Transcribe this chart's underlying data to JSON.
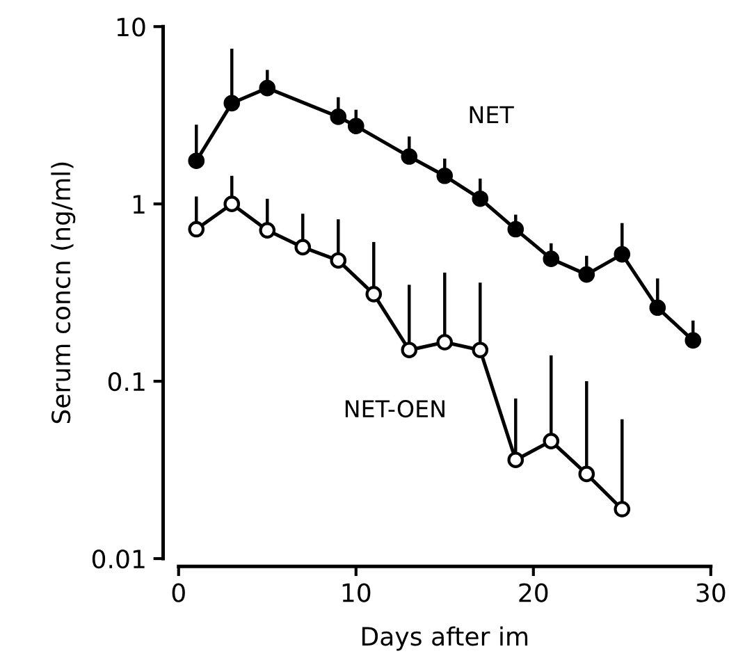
{
  "chart_data": {
    "type": "line",
    "xlabel": "Days after im",
    "ylabel": "Serum concn (ng/ml)",
    "series": [
      {
        "name": "NET",
        "color": "#000000",
        "x": [
          1,
          3,
          5,
          9,
          10,
          13,
          15,
          17,
          19,
          21,
          23,
          25,
          27,
          29
        ],
        "values": [
          1.75,
          3.7,
          4.5,
          3.1,
          2.75,
          1.85,
          1.44,
          1.07,
          0.72,
          0.49,
          0.4,
          0.52,
          0.26,
          0.17
        ],
        "errors": [
          [
            1.75,
            2.8
          ],
          [
            3.7,
            7.5
          ],
          [
            4.5,
            5.7
          ],
          [
            3.1,
            4.0
          ],
          [
            2.75,
            3.4
          ],
          [
            1.85,
            2.4
          ],
          [
            1.44,
            1.8
          ],
          [
            1.07,
            1.39
          ],
          [
            0.72,
            0.87
          ],
          [
            0.49,
            0.6
          ],
          [
            0.4,
            0.51
          ],
          [
            0.52,
            0.78
          ],
          [
            0.26,
            0.38
          ],
          [
            0.17,
            0.22
          ]
        ]
      },
      {
        "name": "NET-OEN",
        "color": "#000000",
        "x": [
          1,
          3,
          5,
          7,
          9,
          11,
          13,
          15,
          17,
          19,
          21,
          23,
          25
        ],
        "values": [
          0.72,
          1.0,
          0.71,
          0.57,
          0.48,
          0.31,
          0.15,
          0.166,
          0.15,
          0.036,
          0.046,
          0.03,
          0.019
        ],
        "errors": [
          [
            0.72,
            1.1
          ],
          [
            1.0,
            1.44
          ],
          [
            0.71,
            1.07
          ],
          [
            0.57,
            0.88
          ],
          [
            0.48,
            0.82
          ],
          [
            0.31,
            0.61
          ],
          [
            0.15,
            0.35
          ],
          [
            0.166,
            0.41
          ],
          [
            0.15,
            0.36
          ],
          [
            0.036,
            0.08
          ],
          [
            0.046,
            0.14
          ],
          [
            0.03,
            0.1
          ],
          [
            0.019,
            0.061
          ]
        ]
      }
    ],
    "log": "y",
    "xlim": [
      0,
      30
    ],
    "xticks": [
      0,
      10,
      20,
      30
    ],
    "ylim": [
      0.01,
      10
    ],
    "yticks": [
      0.01,
      0.1,
      1,
      10
    ],
    "marker": "circle",
    "line_style": "solid",
    "grid": false,
    "legend": false
  }
}
